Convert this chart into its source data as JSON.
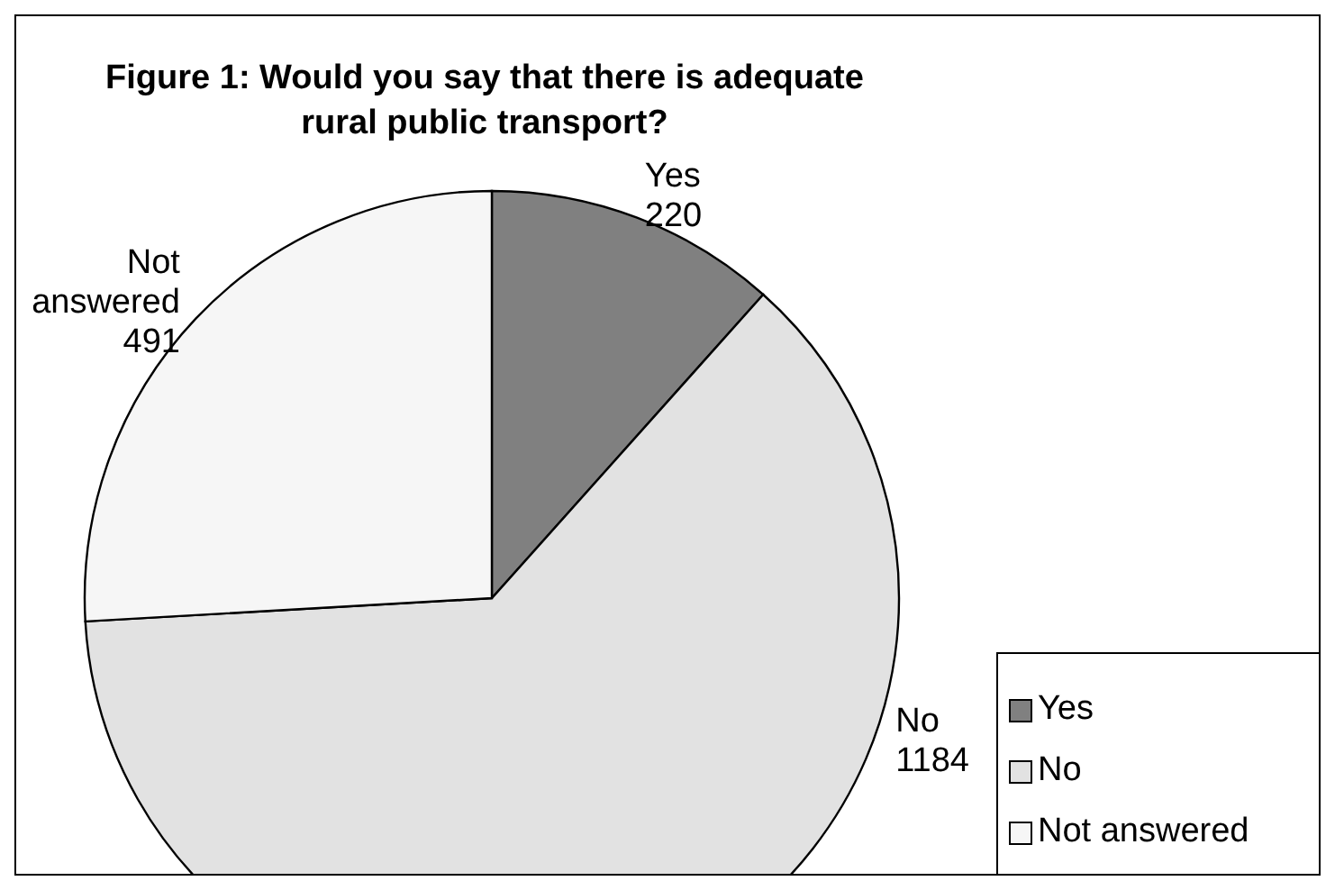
{
  "chart_data": {
    "type": "pie",
    "title": "Figure 1: Would you say that there is adequate rural public transport?",
    "categories": [
      "Yes",
      "No",
      "Not answered"
    ],
    "values": [
      220,
      1184,
      491
    ],
    "colors": [
      "#808080",
      "#e2e2e2",
      "#f6f6f6"
    ],
    "data_labels": true,
    "legend": "bottom right"
  }
}
